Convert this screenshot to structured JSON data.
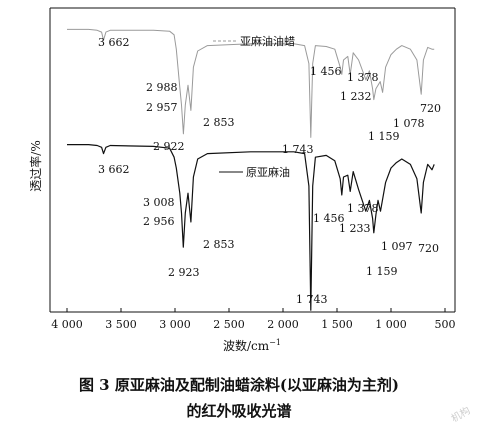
{
  "chart_data": {
    "type": "line",
    "xlabel": "波数/cm",
    "xlabel_sup": "−1",
    "ylabel": "透过率/%",
    "xlim": [
      4000,
      500
    ],
    "x_ticks": [
      4000,
      3500,
      3000,
      2500,
      2000,
      1500,
      1000,
      500
    ],
    "x_tick_labels": [
      "4 000",
      "3 500",
      "3 000",
      "2 500",
      "2 000",
      "1 500",
      "1 000",
      "500"
    ],
    "grid": false,
    "legend_position": "top-right",
    "series": [
      {
        "name": "亚麻油油蜡",
        "color": "#9a9a9a",
        "dashed_legend": true,
        "points": [
          [
            4000,
            0.97
          ],
          [
            3800,
            0.97
          ],
          [
            3720,
            0.965
          ],
          [
            3680,
            0.955
          ],
          [
            3662,
            0.91
          ],
          [
            3640,
            0.955
          ],
          [
            3600,
            0.965
          ],
          [
            3200,
            0.965
          ],
          [
            3050,
            0.96
          ],
          [
            3008,
            0.94
          ],
          [
            2988,
            0.86
          ],
          [
            2957,
            0.66
          ],
          [
            2940,
            0.55
          ],
          [
            2922,
            0.39
          ],
          [
            2905,
            0.55
          ],
          [
            2880,
            0.66
          ],
          [
            2853,
            0.52
          ],
          [
            2830,
            0.76
          ],
          [
            2790,
            0.85
          ],
          [
            2700,
            0.88
          ],
          [
            2300,
            0.89
          ],
          [
            1900,
            0.89
          ],
          [
            1800,
            0.88
          ],
          [
            1760,
            0.78
          ],
          [
            1743,
            0.37
          ],
          [
            1725,
            0.78
          ],
          [
            1700,
            0.88
          ],
          [
            1600,
            0.875
          ],
          [
            1520,
            0.86
          ],
          [
            1470,
            0.76
          ],
          [
            1456,
            0.72
          ],
          [
            1440,
            0.8
          ],
          [
            1400,
            0.82
          ],
          [
            1378,
            0.72
          ],
          [
            1350,
            0.84
          ],
          [
            1300,
            0.8
          ],
          [
            1232,
            0.69
          ],
          [
            1200,
            0.74
          ],
          [
            1170,
            0.64
          ],
          [
            1159,
            0.58
          ],
          [
            1140,
            0.64
          ],
          [
            1100,
            0.68
          ],
          [
            1078,
            0.62
          ],
          [
            1050,
            0.76
          ],
          [
            1000,
            0.83
          ],
          [
            950,
            0.86
          ],
          [
            900,
            0.88
          ],
          [
            820,
            0.86
          ],
          [
            760,
            0.8
          ],
          [
            720,
            0.61
          ],
          [
            700,
            0.8
          ],
          [
            660,
            0.87
          ],
          [
            620,
            0.86
          ],
          [
            600,
            0.86
          ]
        ]
      },
      {
        "name": "原亚麻油",
        "color": "#111111",
        "dashed_legend": false,
        "points": [
          [
            4000,
            0.33
          ],
          [
            3800,
            0.33
          ],
          [
            3720,
            0.325
          ],
          [
            3680,
            0.315
          ],
          [
            3662,
            0.28
          ],
          [
            3640,
            0.315
          ],
          [
            3600,
            0.325
          ],
          [
            3200,
            0.32
          ],
          [
            3050,
            0.31
          ],
          [
            3008,
            0.26
          ],
          [
            2988,
            0.2
          ],
          [
            2956,
            0.06
          ],
          [
            2940,
            -0.05
          ],
          [
            2923,
            -0.24
          ],
          [
            2905,
            -0.05
          ],
          [
            2880,
            0.06
          ],
          [
            2853,
            -0.1
          ],
          [
            2830,
            0.15
          ],
          [
            2790,
            0.25
          ],
          [
            2700,
            0.28
          ],
          [
            2300,
            0.29
          ],
          [
            1900,
            0.29
          ],
          [
            1800,
            0.28
          ],
          [
            1760,
            0.1
          ],
          [
            1743,
            -0.59
          ],
          [
            1725,
            0.1
          ],
          [
            1700,
            0.26
          ],
          [
            1600,
            0.27
          ],
          [
            1520,
            0.24
          ],
          [
            1470,
            0.14
          ],
          [
            1456,
            0.05
          ],
          [
            1440,
            0.15
          ],
          [
            1400,
            0.16
          ],
          [
            1378,
            0.07
          ],
          [
            1350,
            0.18
          ],
          [
            1300,
            0.08
          ],
          [
            1233,
            -0.04
          ],
          [
            1200,
            0.02
          ],
          [
            1170,
            -0.08
          ],
          [
            1159,
            -0.16
          ],
          [
            1140,
            -0.06
          ],
          [
            1120,
            0.02
          ],
          [
            1097,
            -0.04
          ],
          [
            1050,
            0.12
          ],
          [
            1000,
            0.2
          ],
          [
            950,
            0.23
          ],
          [
            900,
            0.25
          ],
          [
            820,
            0.22
          ],
          [
            760,
            0.14
          ],
          [
            720,
            -0.05
          ],
          [
            700,
            0.12
          ],
          [
            660,
            0.22
          ],
          [
            620,
            0.19
          ],
          [
            600,
            0.22
          ]
        ]
      }
    ],
    "annotations": [
      {
        "text": "3 662",
        "series": 0
      },
      {
        "text": "2 988",
        "series": 0
      },
      {
        "text": "2 957",
        "series": 0
      },
      {
        "text": "2 853",
        "series": 0
      },
      {
        "text": "2 922",
        "series": 0
      },
      {
        "text": "1 743",
        "series": 0
      },
      {
        "text": "1 456",
        "series": 0
      },
      {
        "text": "1 378",
        "series": 0
      },
      {
        "text": "1 232",
        "series": 0
      },
      {
        "text": "1 159",
        "series": 0
      },
      {
        "text": "1 078",
        "series": 0
      },
      {
        "text": "720",
        "series": 0
      },
      {
        "text": "3 662",
        "series": 1
      },
      {
        "text": "3 008",
        "series": 1
      },
      {
        "text": "2 956",
        "series": 1
      },
      {
        "text": "2 853",
        "series": 1
      },
      {
        "text": "2 923",
        "series": 1
      },
      {
        "text": "1 743",
        "series": 1
      },
      {
        "text": "1 456",
        "series": 1
      },
      {
        "text": "1 378",
        "series": 1
      },
      {
        "text": "1 233",
        "series": 1
      },
      {
        "text": "1 159",
        "series": 1
      },
      {
        "text": "1 097",
        "series": 1
      },
      {
        "text": "720",
        "series": 1
      }
    ]
  },
  "caption": {
    "line1": "图 3   原亚麻油及配制油蜡涂料(以亚麻油为主剂)",
    "line2": "的红外吸收光谱"
  },
  "watermark": "机构"
}
